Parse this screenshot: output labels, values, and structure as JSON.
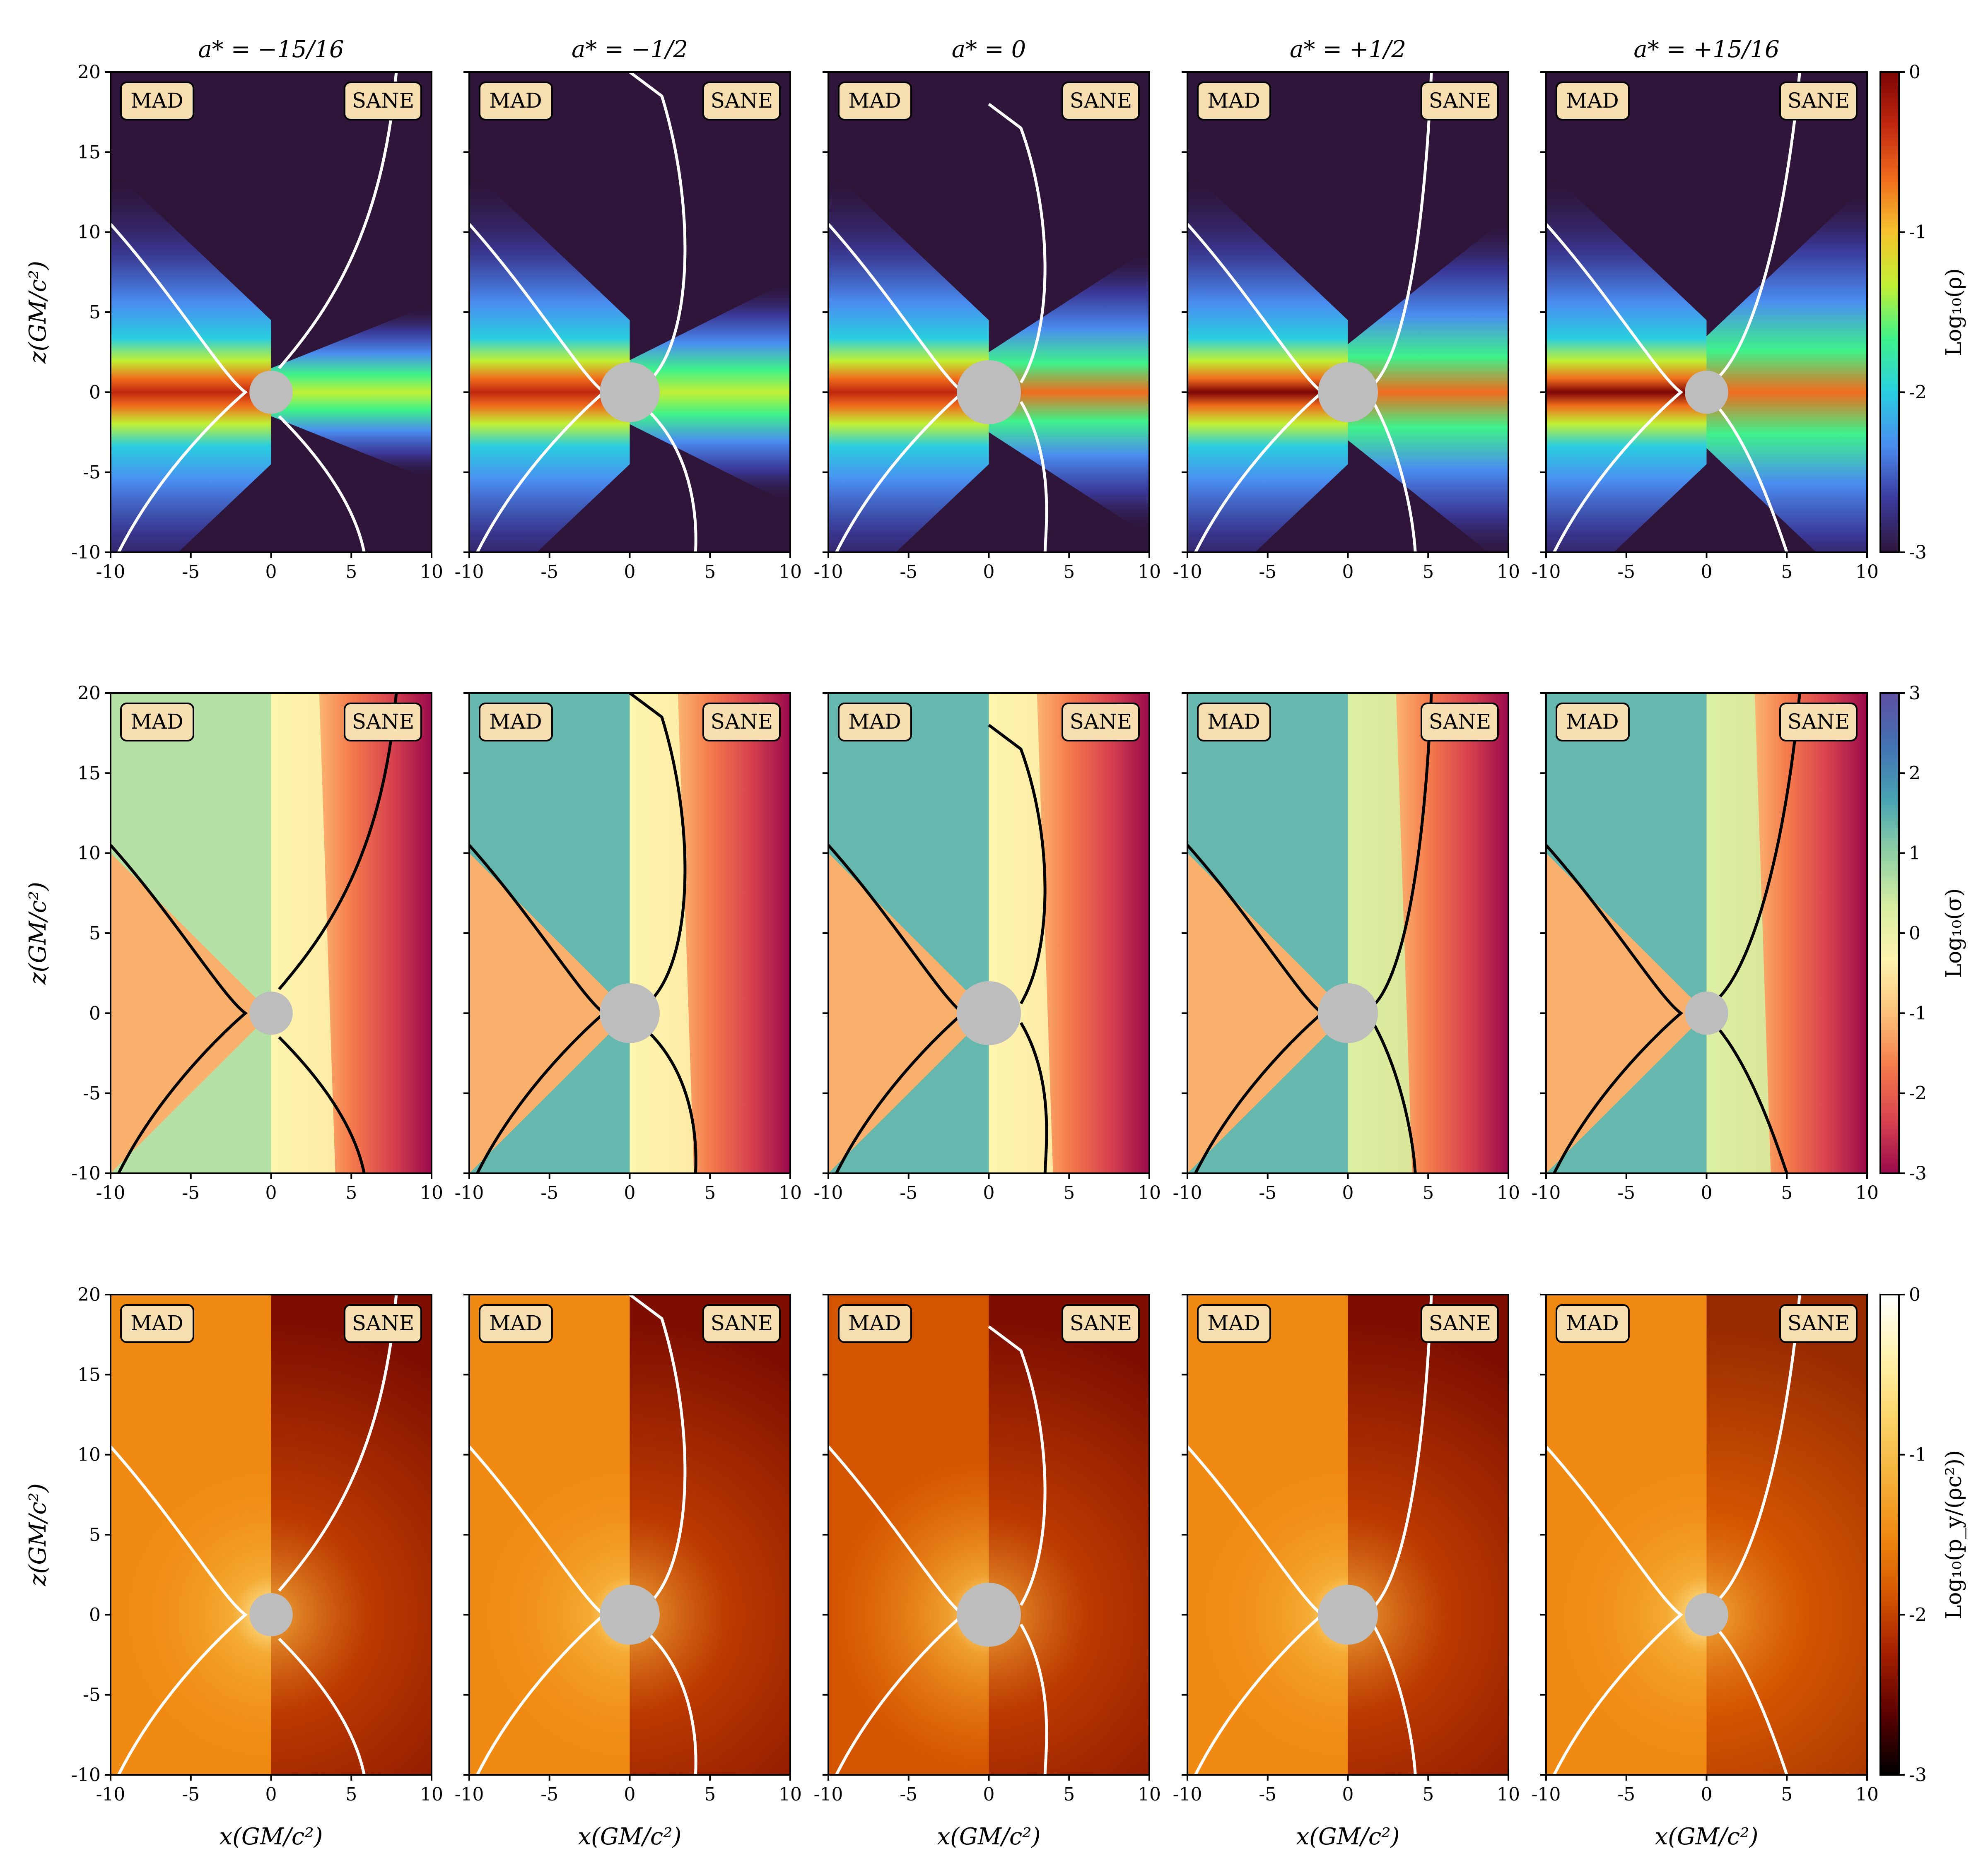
{
  "figure": {
    "column_titles": [
      "a* = −15/16",
      "a* = −1/2",
      "a* = 0",
      "a* = +1/2",
      "a* = +15/16"
    ],
    "row_ylabel": "z(GM/c²)",
    "xlabel": "x(GM/c²)",
    "tags": {
      "left": "MAD",
      "right": "SANE"
    }
  },
  "colors": {
    "horizon": "#bdbdbd",
    "density_floor": "#2e1539",
    "contour_row1": "#ffffff",
    "contour_row2": "#000000",
    "contour_row3": "#ffffff",
    "tag_fill": "#f6deb0"
  },
  "chart_data": [
    {
      "type": "heatmap",
      "row": 1,
      "quantity": "Log10(ρ)",
      "colorbar": {
        "label": "Log₁₀(ρ)",
        "ticks": [
          "0",
          "-1",
          "-2",
          "-3"
        ],
        "range": [
          -3,
          0
        ],
        "colormap": "turbo"
      },
      "xlim": [
        -10,
        10
      ],
      "ylim": [
        -10,
        20
      ],
      "xticks": [
        "-10",
        "-5",
        "0",
        "5",
        "10"
      ],
      "yticks": [
        "20",
        "15",
        "10",
        "5",
        "0",
        "-5",
        "-10"
      ],
      "panels": [
        "a* = −15/16",
        "a* = −1/2",
        "a* = 0",
        "a* = +1/2",
        "a* = +15/16"
      ]
    },
    {
      "type": "heatmap",
      "row": 2,
      "quantity": "Log10(σ)",
      "colorbar": {
        "label": "Log₁₀(σ)",
        "ticks": [
          "3",
          "2",
          "1",
          "0",
          "-1",
          "-2",
          "-3"
        ],
        "range": [
          -3,
          3
        ],
        "colormap": "spectral"
      },
      "xlim": [
        -10,
        10
      ],
      "ylim": [
        -10,
        20
      ],
      "xticks": [
        "-10",
        "-5",
        "0",
        "5",
        "10"
      ],
      "yticks": [
        "20",
        "15",
        "10",
        "5",
        "0",
        "-5",
        "-10"
      ],
      "panels": [
        "a* = −15/16",
        "a* = −1/2",
        "a* = 0",
        "a* = +1/2",
        "a* = +15/16"
      ]
    },
    {
      "type": "heatmap",
      "row": 3,
      "quantity": "Log10(p_y/(ρc²))",
      "colorbar": {
        "label": "Log₁₀(p_y/(ρc²))",
        "ticks": [
          "0",
          "-1",
          "-2",
          "-3"
        ],
        "range": [
          -3,
          0
        ],
        "colormap": "afmhot"
      },
      "xlim": [
        -10,
        10
      ],
      "ylim": [
        -10,
        20
      ],
      "xticks": [
        "-10",
        "-5",
        "0",
        "5",
        "10"
      ],
      "yticks": [
        "20",
        "15",
        "10",
        "5",
        "0",
        "-5",
        "-10"
      ],
      "panels": [
        "a* = −15/16",
        "a* = −1/2",
        "a* = 0",
        "a* = +1/2",
        "a* = +15/16"
      ]
    }
  ],
  "horizon_radius": [
    1.35,
    1.87,
    2.0,
    1.87,
    1.35
  ]
}
